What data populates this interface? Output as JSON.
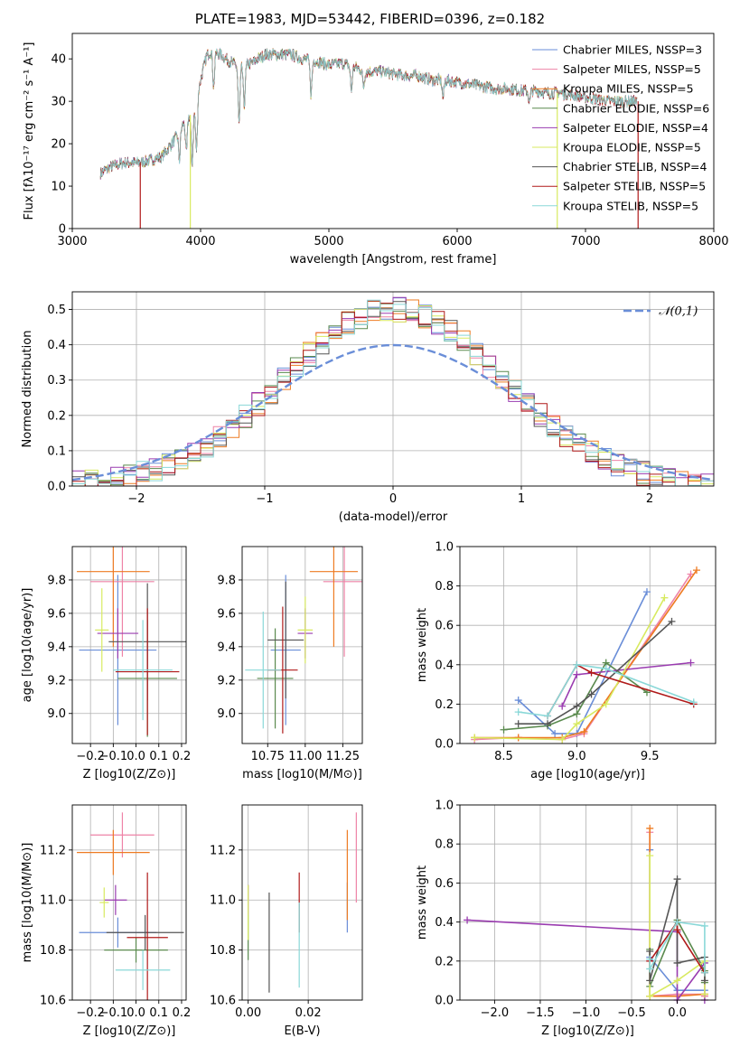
{
  "figure": {
    "title": "PLATE=1983, MJD=53442, FIBERID=0396, z=0.182"
  },
  "colors": [
    "#6a8ed8",
    "#ee82a6",
    "#ee7b22",
    "#5a8a4e",
    "#9a3cb0",
    "#d8ea60",
    "#555555",
    "#b01a1a",
    "#8ad8d8"
  ],
  "chart_data": [
    {
      "id": "spectrum",
      "type": "line",
      "title": "PLATE=1983, MJD=53442, FIBERID=0396, z=0.182",
      "xlabel": "wavelength [Angstrom, rest frame]",
      "ylabel": "Flux [fλ10⁻¹⁷ erg cm⁻² s⁻¹ A⁻¹]",
      "xlim": [
        3000,
        8000
      ],
      "ylim": [
        0,
        46
      ],
      "xticks": [
        3000,
        4000,
        5000,
        6000,
        7000,
        8000
      ],
      "yticks": [
        0,
        10,
        20,
        30,
        40
      ],
      "grid": false,
      "legend": "top-right",
      "series": [
        {
          "name": "Chabrier MILES, NSSP=3"
        },
        {
          "name": "Salpeter MILES, NSSP=5"
        },
        {
          "name": "Kroupa MILES, NSSP=5"
        },
        {
          "name": "Chabrier ELODIE, NSSP=6"
        },
        {
          "name": "Salpeter ELODIE, NSSP=4"
        },
        {
          "name": "Kroupa ELODIE, NSSP=5"
        },
        {
          "name": "Chabrier STELIB, NSSP=4"
        },
        {
          "name": "Salpeter STELIB, NSSP=5"
        },
        {
          "name": "Kroupa STELIB, NSSP=5"
        }
      ],
      "continuum": {
        "x": [
          3220,
          3300,
          3400,
          3500,
          3600,
          3700,
          3750,
          3800,
          3850,
          3900,
          3950,
          4000,
          4050,
          4100,
          4200,
          4300,
          4400,
          4500,
          4600,
          4700,
          4800,
          4900,
          5000,
          5100,
          5200,
          5300,
          5400,
          5500,
          5600,
          5700,
          5800,
          5900,
          6000,
          6100,
          6200,
          6300,
          6400,
          6500,
          6600,
          6700,
          6800,
          6900,
          7000,
          7100,
          7200,
          7300,
          7400
        ],
        "y": [
          13,
          14.5,
          15.5,
          15.5,
          16,
          17,
          19,
          21,
          24,
          26,
          28,
          35,
          41,
          42,
          40,
          38,
          39,
          41,
          41,
          41,
          40,
          39.5,
          38.5,
          39,
          38,
          37,
          37,
          36.5,
          36,
          36,
          35,
          35,
          34.5,
          34,
          33.5,
          33,
          33,
          32.5,
          32.5,
          32,
          32,
          31.5,
          31,
          30.5,
          30,
          30,
          30
        ]
      },
      "dips": [
        {
          "x": 3530,
          "y": 0,
          "series": "Salpeter STELIB, NSSP=5"
        },
        {
          "x": 3920,
          "y": 0,
          "series": "Kroupa ELODIE, NSSP=5"
        },
        {
          "x": 6780,
          "y": 0,
          "series": "Kroupa ELODIE, NSSP=5"
        },
        {
          "x": 7410,
          "y": 0,
          "series": "Salpeter STELIB, NSSP=5"
        }
      ]
    },
    {
      "id": "residual-histogram",
      "type": "area",
      "xlabel": "(data-model)/error",
      "ylabel": "Normed distribution",
      "xlim": [
        -2.5,
        2.5
      ],
      "ylim": [
        0,
        0.55
      ],
      "xticks": [
        -2,
        -1,
        0,
        1,
        2
      ],
      "yticks": [
        0.0,
        0.1,
        0.2,
        0.3,
        0.4,
        0.5
      ],
      "grid": true,
      "legend": "top-right",
      "reference": {
        "name": "𝒩(0,1)",
        "mean": 0,
        "sigma": 1
      },
      "bin_width": 0.1,
      "histogram_peak": 0.5
    },
    {
      "id": "age-vs-Z",
      "type": "scatter",
      "xlabel": "Z [log10(Z/Z⊙)]",
      "ylabel": "age [log10(age/yr)]",
      "xlim": [
        -0.28,
        0.22
      ],
      "ylim": [
        8.82,
        10.0
      ],
      "xticks": [
        -0.2,
        -0.1,
        0.0,
        0.1,
        0.2
      ],
      "yticks": [
        9.0,
        9.2,
        9.4,
        9.6,
        9.8
      ],
      "grid": true,
      "points": [
        {
          "x": -0.08,
          "y": 9.38,
          "xerr": 0.17,
          "yerr": 0.45
        },
        {
          "x": -0.06,
          "y": 9.79,
          "xerr": 0.14,
          "yerr": 0.45
        },
        {
          "x": -0.1,
          "y": 9.85,
          "xerr": 0.16,
          "yerr": 0.45
        },
        {
          "x": 0.05,
          "y": 9.21,
          "xerr": 0.13,
          "yerr": 0.35
        },
        {
          "x": -0.08,
          "y": 9.48,
          "xerr": 0.09,
          "yerr": 0.15
        },
        {
          "x": -0.15,
          "y": 9.5,
          "xerr": 0.03,
          "yerr": 0.25
        },
        {
          "x": 0.05,
          "y": 9.43,
          "xerr": 0.17,
          "yerr": 0.35
        },
        {
          "x": 0.05,
          "y": 9.25,
          "xerr": 0.14,
          "yerr": 0.38
        },
        {
          "x": 0.03,
          "y": 9.26,
          "xerr": 0.13,
          "yerr": 0.3
        }
      ]
    },
    {
      "id": "age-vs-mass",
      "type": "scatter",
      "xlabel": "mass [log10(M/M⊙)]",
      "xlim": [
        10.58,
        11.38
      ],
      "ylim": [
        8.82,
        10.0
      ],
      "xticks": [
        10.75,
        11.0,
        11.25
      ],
      "xticklabels": [
        "10.75",
        "11.00",
        "11.25"
      ],
      "yticks": [
        9.0,
        9.2,
        9.4,
        9.6,
        9.8
      ],
      "grid": true,
      "points": [
        {
          "x": 10.87,
          "y": 9.38,
          "xerr": 0.1,
          "yerr": 0.45
        },
        {
          "x": 11.26,
          "y": 9.79,
          "xerr": 0.14,
          "yerr": 0.45
        },
        {
          "x": 11.19,
          "y": 9.85,
          "xerr": 0.16,
          "yerr": 0.45
        },
        {
          "x": 10.8,
          "y": 9.21,
          "xerr": 0.12,
          "yerr": 0.3
        },
        {
          "x": 11.0,
          "y": 9.48,
          "xerr": 0.05,
          "yerr": 0.15
        },
        {
          "x": 11.0,
          "y": 9.5,
          "xerr": 0.05,
          "yerr": 0.2
        },
        {
          "x": 10.87,
          "y": 9.44,
          "xerr": 0.12,
          "yerr": 0.35
        },
        {
          "x": 10.85,
          "y": 9.26,
          "xerr": 0.1,
          "yerr": 0.38
        },
        {
          "x": 10.72,
          "y": 9.26,
          "xerr": 0.12,
          "yerr": 0.35
        }
      ]
    },
    {
      "id": "massweight-vs-age",
      "type": "line",
      "xlabel": "age [log10(age/yr)]",
      "ylabel": "mass weight",
      "xlim": [
        8.2,
        9.95
      ],
      "ylim": [
        0,
        1.0
      ],
      "xticks": [
        8.5,
        9.0,
        9.5
      ],
      "yticks": [
        0.0,
        0.2,
        0.4,
        0.6,
        0.8,
        1.0
      ],
      "grid": true,
      "series": [
        {
          "name": "Chabrier MILES",
          "x": [
            8.6,
            8.85,
            9.0,
            9.48
          ],
          "y": [
            0.22,
            0.05,
            0.05,
            0.77
          ]
        },
        {
          "name": "Salpeter MILES",
          "x": [
            8.3,
            8.6,
            8.9,
            9.05,
            9.78
          ],
          "y": [
            0.02,
            0.03,
            0.02,
            0.05,
            0.86
          ]
        },
        {
          "name": "Kroupa MILES",
          "x": [
            8.3,
            8.6,
            8.9,
            9.05,
            9.82
          ],
          "y": [
            0.03,
            0.03,
            0.03,
            0.06,
            0.88
          ]
        },
        {
          "name": "Chabrier ELODIE",
          "x": [
            8.5,
            8.8,
            9.0,
            9.2,
            9.48
          ],
          "y": [
            0.07,
            0.09,
            0.15,
            0.41,
            0.26
          ]
        },
        {
          "name": "Salpeter ELODIE",
          "x": [
            8.9,
            9.0,
            9.78
          ],
          "y": [
            0.19,
            0.35,
            0.41
          ]
        },
        {
          "name": "Kroupa ELODIE",
          "x": [
            8.3,
            8.9,
            9.0,
            9.2,
            9.6
          ],
          "y": [
            0.03,
            0.02,
            0.1,
            0.2,
            0.74
          ]
        },
        {
          "name": "Chabrier STELIB",
          "x": [
            8.6,
            8.8,
            9.0,
            9.1,
            9.65
          ],
          "y": [
            0.1,
            0.1,
            0.19,
            0.25,
            0.62
          ]
        },
        {
          "name": "Salpeter STELIB",
          "x": [
            8.8,
            9.0,
            9.1,
            9.8
          ],
          "y": [
            0.14,
            0.4,
            0.36,
            0.2
          ]
        },
        {
          "name": "Kroupa STELIB",
          "x": [
            8.6,
            8.8,
            9.0,
            9.2,
            9.8
          ],
          "y": [
            0.16,
            0.14,
            0.4,
            0.38,
            0.21
          ]
        }
      ]
    },
    {
      "id": "mass-vs-Z",
      "type": "scatter",
      "xlabel": "Z [log10(Z/Z⊙)]",
      "ylabel": "mass [log10(M/M⊙)]",
      "xlim": [
        -0.28,
        0.22
      ],
      "ylim": [
        10.6,
        11.38
      ],
      "xticks": [
        -0.2,
        -0.1,
        0.0,
        0.1,
        0.2
      ],
      "yticks": [
        10.6,
        10.8,
        11.0,
        11.2
      ],
      "grid": true,
      "points": [
        {
          "x": -0.08,
          "y": 10.87,
          "xerr": 0.17,
          "yerr": 0.06
        },
        {
          "x": -0.06,
          "y": 11.26,
          "xerr": 0.14,
          "yerr": 0.09
        },
        {
          "x": -0.1,
          "y": 11.19,
          "xerr": 0.16,
          "yerr": 0.09
        },
        {
          "x": 0.0,
          "y": 10.8,
          "xerr": 0.14,
          "yerr": 0.05
        },
        {
          "x": -0.09,
          "y": 11.0,
          "xerr": 0.05,
          "yerr": 0.06
        },
        {
          "x": -0.14,
          "y": 10.99,
          "xerr": 0.02,
          "yerr": 0.06
        },
        {
          "x": 0.04,
          "y": 10.87,
          "xerr": 0.17,
          "yerr": 0.07
        },
        {
          "x": 0.05,
          "y": 10.85,
          "xerr": 0.09,
          "yerr": 0.26
        },
        {
          "x": 0.03,
          "y": 10.72,
          "xerr": 0.12,
          "yerr": 0.08
        }
      ]
    },
    {
      "id": "mass-vs-EBV",
      "type": "scatter",
      "xlabel": "E(B-V)",
      "xlim": [
        -0.002,
        0.038
      ],
      "ylim": [
        10.6,
        11.38
      ],
      "xticks": [
        0.0,
        0.02
      ],
      "xticklabels": [
        "0.00",
        "0.02"
      ],
      "yticks": [
        10.6,
        10.8,
        11.0,
        11.2
      ],
      "grid": true,
      "points": [
        {
          "x": 0.033,
          "y": 10.97,
          "yerr": 0.1
        },
        {
          "x": 0.036,
          "y": 11.17,
          "yerr": 0.18
        },
        {
          "x": 0.033,
          "y": 11.1,
          "yerr": 0.18
        },
        {
          "x": 0.0,
          "y": 10.85,
          "yerr": 0.09
        },
        {
          "x": 0.0,
          "y": 11.0,
          "yerr": 0.06
        },
        {
          "x": 0.0,
          "y": 10.95,
          "yerr": 0.11
        },
        {
          "x": 0.007,
          "y": 10.83,
          "yerr": 0.2
        },
        {
          "x": 0.017,
          "y": 10.99,
          "yerr": 0.12
        },
        {
          "x": 0.017,
          "y": 10.82,
          "yerr": 0.17
        }
      ]
    },
    {
      "id": "massweight-vs-Z",
      "type": "line",
      "xlabel": "Z [log10(Z/Z⊙)]",
      "ylabel": "mass weight",
      "xlim": [
        -2.38,
        0.42
      ],
      "ylim": [
        0,
        1.0
      ],
      "xticks": [
        -2.0,
        -1.5,
        -1.0,
        -0.5,
        0.0
      ],
      "yticks": [
        0.0,
        0.2,
        0.4,
        0.6,
        0.8,
        1.0
      ],
      "grid": true,
      "series": [
        {
          "name": "Chabrier MILES",
          "x": [
            -0.3,
            -0.3,
            0.0,
            0.0,
            0.3
          ],
          "y": [
            0.77,
            0.22,
            0.05,
            0.05,
            0.05
          ]
        },
        {
          "name": "Salpeter MILES",
          "x": [
            -0.3,
            -0.3,
            0.0,
            0.3,
            0.3
          ],
          "y": [
            0.86,
            0.02,
            0.03,
            0.03,
            0.02
          ]
        },
        {
          "name": "Kroupa MILES",
          "x": [
            -0.3,
            -0.3,
            0.0,
            0.3,
            0.3
          ],
          "y": [
            0.88,
            0.02,
            0.02,
            0.03,
            0.03
          ]
        },
        {
          "name": "Chabrier ELODIE",
          "x": [
            -0.3,
            -0.3,
            0.0,
            0.3,
            0.3
          ],
          "y": [
            0.26,
            0.07,
            0.41,
            0.15,
            0.09
          ]
        },
        {
          "name": "Salpeter ELODIE",
          "x": [
            -2.3,
            0.0,
            0.0,
            0.3,
            0.3
          ],
          "y": [
            0.41,
            0.35,
            0.0,
            0.19,
            0.0
          ]
        },
        {
          "name": "Kroupa ELODIE",
          "x": [
            -0.3,
            -0.3,
            0.0,
            0.3,
            0.3
          ],
          "y": [
            0.74,
            0.02,
            0.1,
            0.2,
            0.03
          ]
        },
        {
          "name": "Chabrier STELIB",
          "x": [
            -0.3,
            -0.3,
            0.0,
            0.0,
            0.3,
            0.3
          ],
          "y": [
            0.25,
            0.1,
            0.62,
            0.19,
            0.22,
            0.1
          ]
        },
        {
          "name": "Salpeter STELIB",
          "x": [
            -0.3,
            0.0,
            0.0,
            0.3
          ],
          "y": [
            0.2,
            0.4,
            0.36,
            0.14
          ]
        },
        {
          "name": "Kroupa STELIB",
          "x": [
            -0.3,
            -0.3,
            0.0,
            0.3,
            0.3
          ],
          "y": [
            0.21,
            0.16,
            0.4,
            0.38,
            0.14
          ]
        }
      ]
    }
  ]
}
